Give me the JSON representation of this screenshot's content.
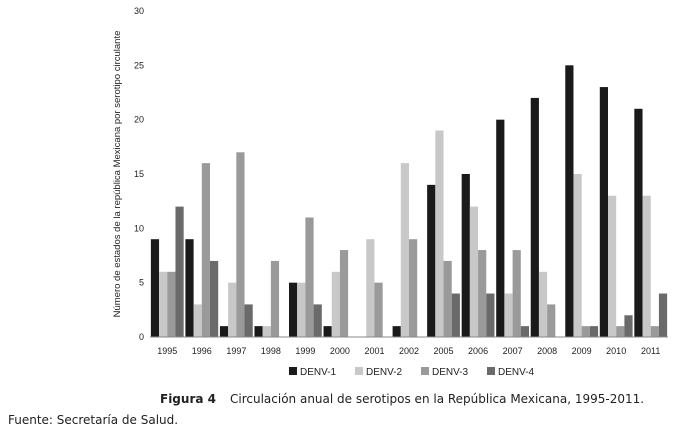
{
  "chart_data": {
    "type": "bar",
    "ylabel": "Número de estados de la república Mexicana por serotipo circulante",
    "xlabel": "",
    "ylim": [
      0,
      30
    ],
    "yticks": [
      0,
      5,
      10,
      15,
      20,
      25,
      30
    ],
    "grid": false,
    "legend_position": "bottom",
    "categories": [
      "1995",
      "1996",
      "1997",
      "1998",
      "1999",
      "2000",
      "2001",
      "2002",
      "2005",
      "2006",
      "2007",
      "2008",
      "2009",
      "2010",
      "2011"
    ],
    "series": [
      {
        "name": "DENV-1",
        "color": "#1a1a1a",
        "values": [
          9,
          9,
          1,
          1,
          5,
          1,
          0,
          1,
          14,
          15,
          20,
          22,
          25,
          23,
          21
        ]
      },
      {
        "name": "DENV-2",
        "color": "#c8c8c8",
        "values": [
          6,
          3,
          5,
          1,
          5,
          6,
          9,
          16,
          19,
          12,
          4,
          6,
          15,
          13,
          13
        ]
      },
      {
        "name": "DENV-3",
        "color": "#9a9a9a",
        "values": [
          6,
          16,
          17,
          7,
          11,
          8,
          5,
          9,
          7,
          8,
          8,
          3,
          1,
          1,
          1
        ]
      },
      {
        "name": "DENV-4",
        "color": "#6a6a6a",
        "values": [
          12,
          7,
          3,
          0,
          3,
          0,
          0,
          0,
          4,
          4,
          1,
          0,
          1,
          2,
          4
        ]
      }
    ]
  },
  "caption": {
    "figure_label": "Figura 4",
    "text": "Circulación anual de serotipos en la República Mexicana, 1995-2011."
  },
  "source": "Fuente: Secretaría de Salud."
}
